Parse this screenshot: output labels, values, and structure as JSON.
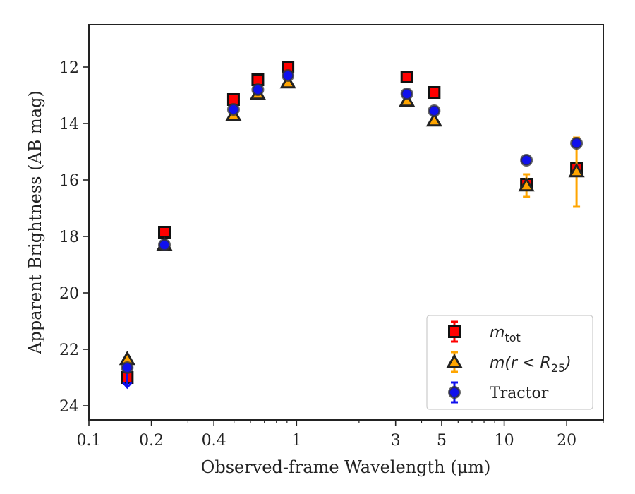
{
  "chart_data": {
    "type": "scatter",
    "xlabel": "Observed-frame Wavelength (μm)",
    "ylabel": "Apparent Brightness (AB mag)",
    "x_scale": "log",
    "xlim": [
      0.1,
      30
    ],
    "ylim": [
      24.5,
      10.5
    ],
    "y_inverted": true,
    "grid": false,
    "legend_position": "lower-right",
    "x_ticks": [
      {
        "value": 0.1,
        "label": "0.1"
      },
      {
        "value": 0.2,
        "label": "0.2"
      },
      {
        "value": 0.4,
        "label": "0.4"
      },
      {
        "value": 1,
        "label": "1"
      },
      {
        "value": 3,
        "label": "3"
      },
      {
        "value": 5,
        "label": "5"
      },
      {
        "value": 10,
        "label": "10"
      },
      {
        "value": 20,
        "label": "20"
      }
    ],
    "y_ticks": [
      {
        "value": 12,
        "label": "12"
      },
      {
        "value": 14,
        "label": "14"
      },
      {
        "value": 16,
        "label": "16"
      },
      {
        "value": 18,
        "label": "18"
      },
      {
        "value": 20,
        "label": "20"
      },
      {
        "value": 22,
        "label": "22"
      },
      {
        "value": 24,
        "label": "24"
      }
    ],
    "series": [
      {
        "name": "m_tot",
        "legend_main": "m",
        "legend_sub": "tot",
        "marker": "square",
        "face_color": "#ff0000",
        "error_color": "#ff0000",
        "points": [
          {
            "x": 0.153,
            "y": 23.0
          },
          {
            "x": 0.231,
            "y": 17.85
          },
          {
            "x": 0.497,
            "y": 13.15
          },
          {
            "x": 0.651,
            "y": 12.45
          },
          {
            "x": 0.909,
            "y": 12.0
          },
          {
            "x": 3.4,
            "y": 12.35
          },
          {
            "x": 4.6,
            "y": 12.9
          },
          {
            "x": 12.8,
            "y": 16.15,
            "yerr": 0.15
          },
          {
            "x": 22.3,
            "y": 15.6,
            "yerr": 0.2
          }
        ]
      },
      {
        "name": "m(r < R25)",
        "legend_main": "m(r < R",
        "legend_sub": "25",
        "legend_end": ")",
        "marker": "triangle",
        "face_color": "#ffa500",
        "error_color": "#ffa500",
        "points": [
          {
            "x": 0.153,
            "y": 22.35
          },
          {
            "x": 0.231,
            "y": 18.3
          },
          {
            "x": 0.497,
            "y": 13.7
          },
          {
            "x": 0.651,
            "y": 12.95
          },
          {
            "x": 0.909,
            "y": 12.55
          },
          {
            "x": 3.4,
            "y": 13.2
          },
          {
            "x": 4.6,
            "y": 13.9
          },
          {
            "x": 12.8,
            "y": 16.2,
            "yerr_low": 0.4,
            "yerr_high": 0.4
          },
          {
            "x": 22.3,
            "y": 15.7,
            "yerr_low": 1.25,
            "yerr_high": 1.2
          }
        ]
      },
      {
        "name": "Tractor",
        "legend_main": "Tractor",
        "marker": "circle",
        "face_color": "#1010ee",
        "error_color": "#1010ee",
        "points": [
          {
            "x": 0.153,
            "y": 22.65,
            "upper_limit": true
          },
          {
            "x": 0.231,
            "y": 18.3
          },
          {
            "x": 0.497,
            "y": 13.5
          },
          {
            "x": 0.651,
            "y": 12.8
          },
          {
            "x": 0.909,
            "y": 12.3
          },
          {
            "x": 3.4,
            "y": 12.95
          },
          {
            "x": 4.6,
            "y": 13.55
          },
          {
            "x": 12.8,
            "y": 15.3
          },
          {
            "x": 22.3,
            "y": 14.7,
            "yerr": 0.12
          }
        ]
      }
    ]
  }
}
